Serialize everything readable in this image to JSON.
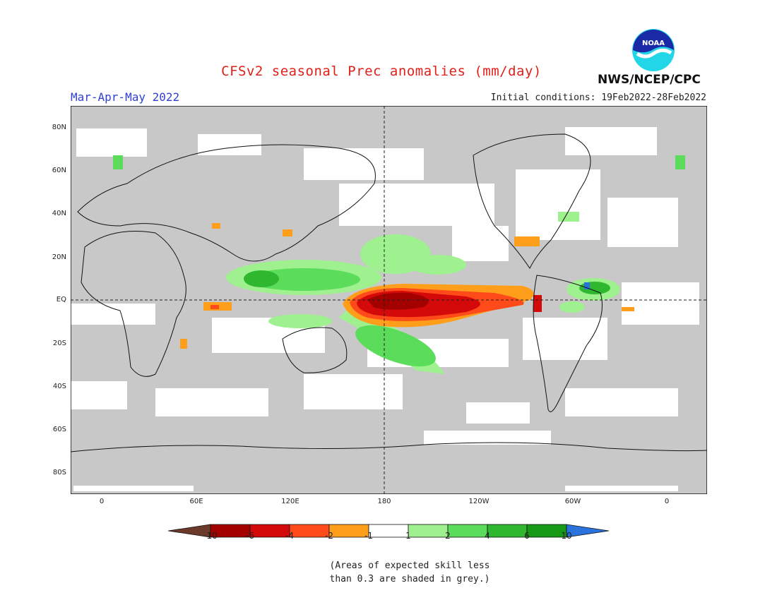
{
  "header": {
    "title": "CFSv2 seasonal Prec anomalies (mm/day)",
    "season": "Mar-Apr-May 2022",
    "initial_conditions": "Initial conditions: 19Feb2022-28Feb2022",
    "agency": "NWS/NCEP/CPC",
    "logo_text": "NOAA"
  },
  "map": {
    "lat_labels": [
      "80N",
      "60N",
      "40N",
      "20N",
      "EQ",
      "20S",
      "40S",
      "60S",
      "80S"
    ],
    "lon_labels": [
      "0",
      "60E",
      "120E",
      "180",
      "120W",
      "60W",
      "0"
    ]
  },
  "colorbar": {
    "labels": [
      "-10",
      "-6",
      "-4",
      "-2",
      "-1",
      "1",
      "2",
      "4",
      "6",
      "10"
    ],
    "colors": {
      "lt_neg10": "#6b3a2a",
      "neg10_neg6": "#a30000",
      "neg6_neg4": "#d40a0a",
      "neg4_neg2": "#ff4b1a",
      "neg2_neg1": "#ff9e1a",
      "neg1_1": "#ffffff",
      "p1_2": "#9ff08f",
      "p2_4": "#5bdc5b",
      "p4_6": "#2fb82f",
      "p6_10": "#169a16",
      "gt_10": "#2a73dd"
    },
    "grey_skill": "#c8c8c8"
  },
  "note": {
    "line1": "(Areas of expected skill less",
    "line2": "than 0.3 are shaded in grey.)"
  }
}
